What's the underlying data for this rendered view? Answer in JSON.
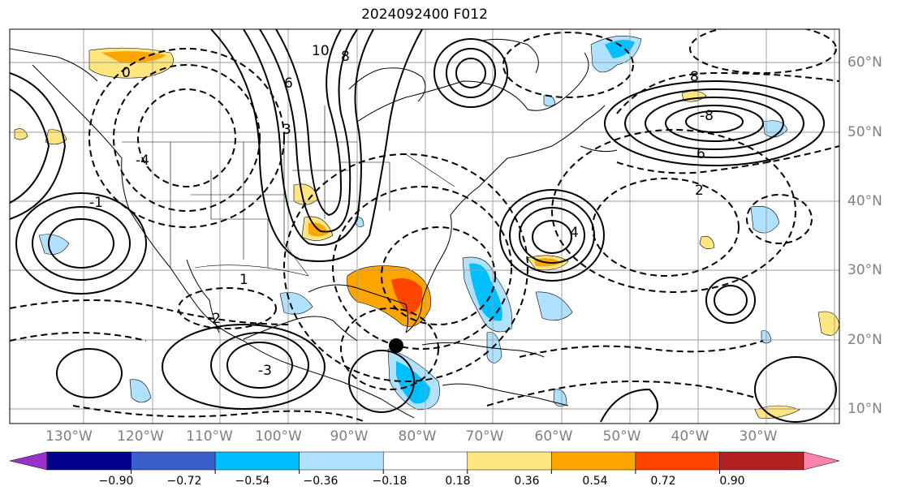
{
  "title": "2024092400 F012",
  "lon_labels": [
    "130°W",
    "120°W",
    "110°W",
    "100°W",
    "90°W",
    "80°W",
    "70°W",
    "60°W",
    "50°W",
    "40°W",
    "30°W"
  ],
  "lat_labels": [
    "60°N",
    "50°N",
    "40°N",
    "30°N",
    "20°N",
    "10°N"
  ],
  "colorbar": {
    "ticks": [
      "−0.90",
      "−0.72",
      "−0.54",
      "−0.36",
      "−0.18",
      "0.18",
      "0.36",
      "0.54",
      "0.72",
      "0.90"
    ],
    "colors": [
      "#9932cc",
      "#00008b",
      "#3a5fcd",
      "#00bfff",
      "#b0e2ff",
      "#ffffff",
      "#ffe680",
      "#ffa500",
      "#ff4500",
      "#b22222",
      "#ff82ab"
    ]
  },
  "contour_labels": [
    "10",
    "8",
    "6",
    "3",
    "0",
    "-1",
    "-2",
    "-3",
    "-4",
    "2",
    "1",
    "4",
    "-8",
    "8",
    "6"
  ],
  "marker": "storm-center"
}
